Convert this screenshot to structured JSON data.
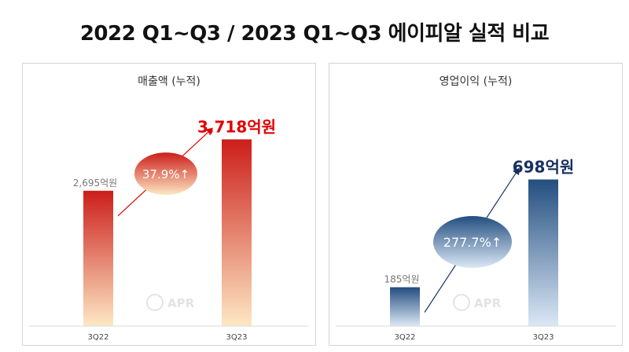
{
  "title": "2022 Q1~Q3 / 2023 Q1~Q3 에이피알 실적 비교",
  "watermark": "APR",
  "colors": {
    "accent_red": "#e30000",
    "accent_navy": "#17305e"
  },
  "chart_data": [
    {
      "type": "bar",
      "title": "매출액 (누적)",
      "categories": [
        "3Q22",
        "3Q23"
      ],
      "values": [
        2695,
        3718
      ],
      "unit": "억원",
      "value_labels": [
        "2,695억원",
        "3,718억원"
      ],
      "growth_label": "37.9%↑",
      "ylim": [
        0,
        4600
      ],
      "grid": false,
      "colors": {
        "top": "#cc1e1a",
        "bottom": "#fde8c4"
      }
    },
    {
      "type": "bar",
      "title": "영업이익 (누적)",
      "categories": [
        "3Q22",
        "3Q23"
      ],
      "values": [
        185,
        698
      ],
      "unit": "억원",
      "value_labels": [
        "185억원",
        "698억원"
      ],
      "growth_label": "277.7%↑",
      "ylim": [
        0,
        1100
      ],
      "grid": false,
      "colors": {
        "top": "#234e7f",
        "bottom": "#dbe8f6"
      }
    }
  ]
}
